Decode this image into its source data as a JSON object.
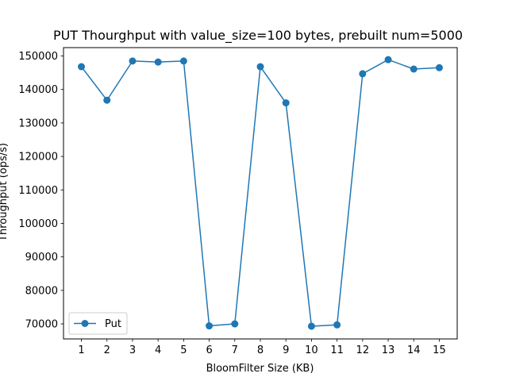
{
  "chart_data": {
    "type": "line",
    "title": "PUT Thourghput with value_size=100 bytes, prebuilt num=5000",
    "xlabel": "BloomFilter Size (KB)",
    "ylabel": "Throughput (ops/s)",
    "x": [
      1,
      2,
      3,
      4,
      5,
      6,
      7,
      8,
      9,
      10,
      11,
      12,
      13,
      14,
      15
    ],
    "x_tick_labels": [
      "1",
      "2",
      "3",
      "4",
      "5",
      "6",
      "7",
      "8",
      "9",
      "10",
      "11",
      "12",
      "13",
      "14",
      "15"
    ],
    "y_ticks": [
      70000,
      80000,
      90000,
      100000,
      110000,
      120000,
      130000,
      140000,
      150000
    ],
    "y_tick_labels": [
      "70000",
      "80000",
      "90000",
      "100000",
      "110000",
      "120000",
      "130000",
      "140000",
      "150000"
    ],
    "xlim": [
      0.3,
      15.7
    ],
    "ylim": [
      65500,
      152500
    ],
    "grid": false,
    "legend_position": "lower-left",
    "series": [
      {
        "name": "Put",
        "color": "#1f77b4",
        "marker": "circle",
        "values": [
          146800,
          136800,
          148500,
          148200,
          148500,
          69400,
          70000,
          146800,
          136000,
          69300,
          69700,
          144700,
          148900,
          146100,
          146500
        ]
      }
    ]
  }
}
